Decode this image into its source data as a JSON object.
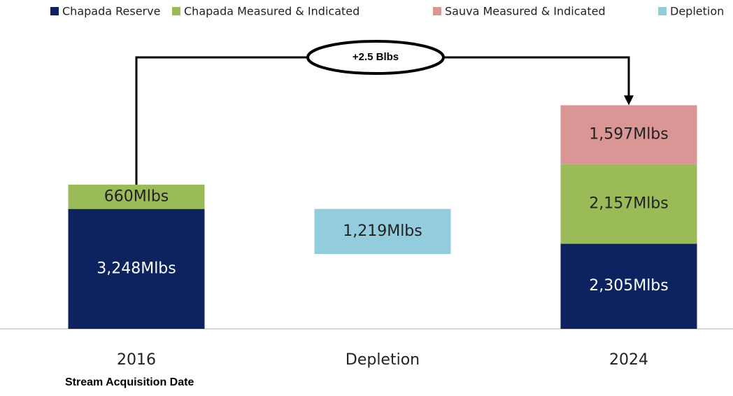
{
  "chart_data": {
    "type": "stacked-waterfall",
    "categories": [
      "2016",
      "Depletion",
      "2024"
    ],
    "series": [
      {
        "name": "Chapada Reserve",
        "color": "#0c2360",
        "values": [
          3248,
          null,
          2305
        ],
        "value_labels": [
          "3,248Mlbs",
          null,
          "2,305Mlbs"
        ]
      },
      {
        "name": "Chapada Measured & Indicated",
        "color": "#9bbb59",
        "values": [
          660,
          null,
          2157
        ],
        "value_labels": [
          "660Mlbs",
          null,
          "2,157Mlbs"
        ]
      },
      {
        "name": "Sauva Measured & Indicated",
        "color": "#d99694",
        "values": [
          null,
          null,
          1597
        ],
        "value_labels": [
          null,
          null,
          "1,597Mlbs"
        ]
      },
      {
        "name": "Depletion",
        "color": "#93cddd",
        "values": [
          null,
          1219,
          null
        ],
        "value_labels": [
          null,
          "1,219Mlbs",
          null
        ]
      }
    ],
    "annotation": "+2.5 Blbs",
    "x_label": "Stream Acquisition Date",
    "ylim": [
      0,
      8000
    ],
    "legend": "top"
  }
}
